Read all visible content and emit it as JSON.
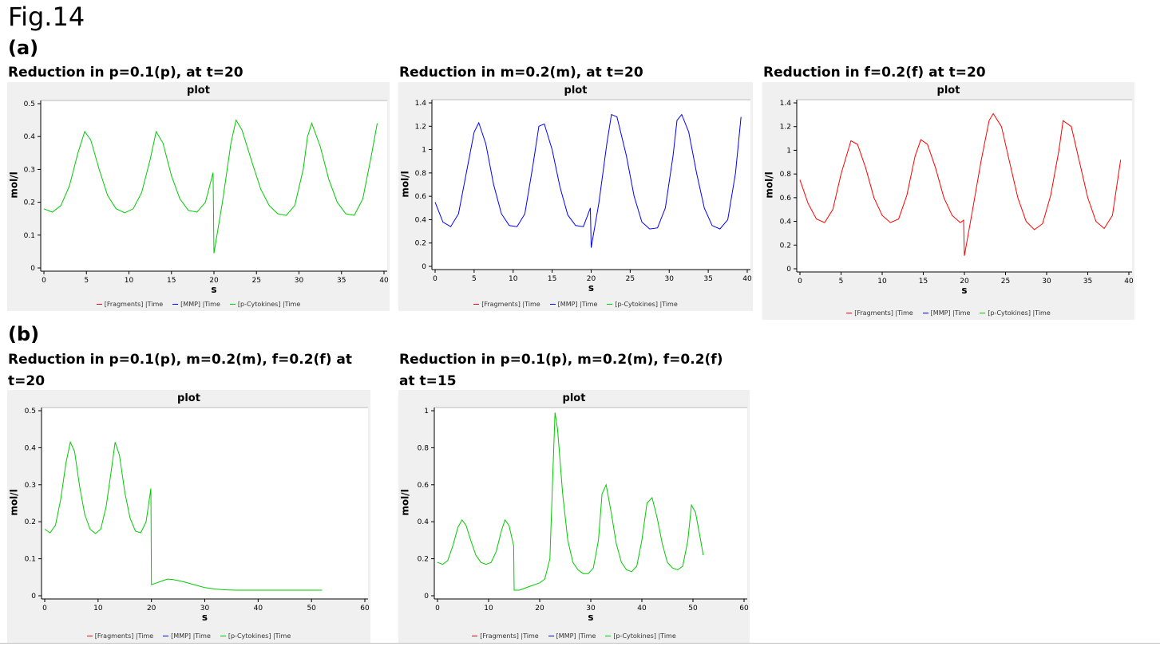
{
  "figure": {
    "title": "Fig.14",
    "panel_a": "(a)",
    "panel_b": "(b)",
    "captions": [
      "Reduction in p=0.1(p), at t=20",
      "Reduction in m=0.2(m), at t=20",
      "Reduction in f=0.2(f) at t=20",
      "Reduction in p=0.1(p), m=0.2(m), f=0.2(f) at t=20",
      "Reduction in p=0.1(p), m=0.2(m), f=0.2(f) at t=15"
    ]
  },
  "legend": [
    {
      "label": "[Fragments] |Time",
      "color": "#ff0000"
    },
    {
      "label": "[MMP] |Time",
      "color": "#0000ff"
    },
    {
      "label": "[p-Cytokines] |Time",
      "color": "#00cc00"
    }
  ],
  "chart_data": [
    {
      "type": "line",
      "title": "plot",
      "xlabel": "s",
      "ylabel": "mol/l",
      "xlim": [
        0,
        40
      ],
      "ylim": [
        0,
        0.5
      ],
      "xticks": [
        "0",
        "5",
        "10",
        "15",
        "20",
        "25",
        "30",
        "35",
        "40"
      ],
      "yticks": [
        "0",
        "0.1",
        "0.2",
        "0.3",
        "0.4",
        "0.5"
      ],
      "series": [
        {
          "name": "[p-Cytokines] |Time",
          "color": "#00cc00",
          "x": [
            0,
            1,
            2,
            3,
            4,
            4.8,
            5.5,
            6.5,
            7.5,
            8.5,
            9.5,
            10.5,
            11.5,
            12.5,
            13.2,
            14,
            15,
            16,
            17,
            18,
            19,
            19.9,
            20,
            21,
            22,
            22.6,
            23.3,
            24.5,
            25.5,
            26.5,
            27.5,
            28.5,
            29.5,
            30.5,
            31,
            31.5,
            32.5,
            33.5,
            34.5,
            35.5,
            36.5,
            37.5,
            38.5,
            39.2
          ],
          "y": [
            0.18,
            0.17,
            0.19,
            0.25,
            0.35,
            0.415,
            0.39,
            0.3,
            0.22,
            0.18,
            0.168,
            0.18,
            0.23,
            0.33,
            0.415,
            0.38,
            0.28,
            0.21,
            0.175,
            0.17,
            0.2,
            0.29,
            0.045,
            0.2,
            0.38,
            0.45,
            0.42,
            0.32,
            0.24,
            0.19,
            0.165,
            0.16,
            0.19,
            0.3,
            0.4,
            0.44,
            0.37,
            0.27,
            0.2,
            0.165,
            0.16,
            0.21,
            0.34,
            0.44
          ]
        }
      ]
    },
    {
      "type": "line",
      "title": "plot",
      "xlabel": "s",
      "ylabel": "mol/l",
      "xlim": [
        0,
        40
      ],
      "ylim": [
        0,
        1.4
      ],
      "xticks": [
        "0",
        "5",
        "10",
        "15",
        "20",
        "25",
        "30",
        "35",
        "40"
      ],
      "yticks": [
        "0",
        "0.2",
        "0.4",
        "0.6",
        "0.8",
        "1",
        "1.2",
        "1.4"
      ],
      "series": [
        {
          "name": "[MMP] |Time",
          "color": "#0000ff",
          "x": [
            0,
            1,
            2,
            3,
            4,
            5,
            5.6,
            6.5,
            7.5,
            8.5,
            9.5,
            10.5,
            11.5,
            12.5,
            13.3,
            14,
            15,
            16,
            17,
            18,
            19,
            19.9,
            20,
            21,
            22,
            22.6,
            23.3,
            24.5,
            25.5,
            26.5,
            27.5,
            28.5,
            29.5,
            30.5,
            31,
            31.6,
            32.5,
            33.5,
            34.5,
            35.5,
            36.5,
            37.5,
            38.5,
            39.2
          ],
          "y": [
            0.55,
            0.38,
            0.34,
            0.45,
            0.8,
            1.15,
            1.23,
            1.05,
            0.7,
            0.45,
            0.35,
            0.34,
            0.45,
            0.85,
            1.2,
            1.22,
            1.0,
            0.68,
            0.44,
            0.35,
            0.34,
            0.5,
            0.16,
            0.55,
            1.05,
            1.3,
            1.28,
            0.95,
            0.6,
            0.38,
            0.32,
            0.33,
            0.5,
            0.95,
            1.25,
            1.3,
            1.15,
            0.8,
            0.5,
            0.35,
            0.32,
            0.4,
            0.8,
            1.28
          ]
        }
      ]
    },
    {
      "type": "line",
      "title": "plot",
      "xlabel": "s",
      "ylabel": "mol/l",
      "xlim": [
        0,
        40
      ],
      "ylim": [
        0,
        1.4
      ],
      "xticks": [
        "0",
        "5",
        "10",
        "15",
        "20",
        "25",
        "30",
        "35",
        "40"
      ],
      "yticks": [
        "0",
        "0.2",
        "0.4",
        "0.6",
        "0.8",
        "1",
        "1.2",
        "1.4"
      ],
      "series": [
        {
          "name": "[Fragments] |Time",
          "color": "#ff0000",
          "x": [
            0,
            1,
            2,
            3,
            4,
            5,
            6.2,
            7,
            8,
            9,
            10,
            11,
            12,
            13,
            14,
            14.7,
            15.5,
            16.5,
            17.5,
            18.5,
            19.5,
            19.9,
            20,
            21,
            22,
            23,
            23.5,
            24.5,
            25.5,
            26.5,
            27.5,
            28.5,
            29.5,
            30.5,
            31.5,
            32,
            33,
            34,
            35,
            36,
            37,
            38,
            39
          ],
          "y": [
            0.75,
            0.55,
            0.42,
            0.39,
            0.5,
            0.8,
            1.08,
            1.05,
            0.85,
            0.6,
            0.45,
            0.39,
            0.42,
            0.62,
            0.95,
            1.09,
            1.05,
            0.85,
            0.6,
            0.45,
            0.39,
            0.41,
            0.11,
            0.5,
            0.9,
            1.25,
            1.31,
            1.2,
            0.9,
            0.6,
            0.4,
            0.33,
            0.38,
            0.62,
            1.0,
            1.25,
            1.2,
            0.9,
            0.6,
            0.4,
            0.34,
            0.45,
            0.92
          ]
        }
      ]
    },
    {
      "type": "line",
      "title": "plot",
      "xlabel": "s",
      "ylabel": "mol/l",
      "xlim": [
        0,
        60
      ],
      "ylim": [
        0,
        0.5
      ],
      "xticks": [
        "0",
        "10",
        "20",
        "30",
        "40",
        "50",
        "60"
      ],
      "yticks": [
        "0",
        "0.1",
        "0.2",
        "0.3",
        "0.4",
        "0.5"
      ],
      "series": [
        {
          "name": "[p-Cytokines] |Time",
          "color": "#00cc00",
          "x": [
            0,
            1,
            2,
            3,
            4,
            4.8,
            5.6,
            6.5,
            7.5,
            8.5,
            9.5,
            10.5,
            11.5,
            12.5,
            13.2,
            14,
            15,
            16,
            17,
            18,
            19,
            19.9,
            20,
            21,
            22,
            23,
            24,
            26,
            28,
            30,
            32,
            34,
            36,
            40,
            45,
            52
          ],
          "y": [
            0.18,
            0.17,
            0.19,
            0.26,
            0.36,
            0.415,
            0.39,
            0.3,
            0.22,
            0.18,
            0.168,
            0.18,
            0.24,
            0.34,
            0.415,
            0.38,
            0.28,
            0.21,
            0.175,
            0.17,
            0.2,
            0.29,
            0.03,
            0.035,
            0.04,
            0.045,
            0.044,
            0.038,
            0.03,
            0.022,
            0.018,
            0.016,
            0.015,
            0.015,
            0.015,
            0.015
          ]
        }
      ]
    },
    {
      "type": "line",
      "title": "plot",
      "xlabel": "s",
      "ylabel": "mol/l",
      "xlim": [
        0,
        60
      ],
      "ylim": [
        0,
        1
      ],
      "xticks": [
        "0",
        "10",
        "20",
        "30",
        "40",
        "50",
        "60"
      ],
      "yticks": [
        "0",
        "0.2",
        "0.4",
        "0.6",
        "0.8",
        "1"
      ],
      "series": [
        {
          "name": "[p-Cytokines] |Time",
          "color": "#00cc00",
          "x": [
            0,
            1,
            2,
            3,
            4,
            4.8,
            5.6,
            6.5,
            7.5,
            8.5,
            9.5,
            10.5,
            11.5,
            12.5,
            13.2,
            14,
            14.9,
            15,
            16,
            18,
            20,
            21,
            22,
            22.5,
            23,
            23.5,
            24.5,
            25.5,
            26.5,
            27.5,
            28.5,
            29.5,
            30.5,
            31.5,
            32.2,
            33,
            34,
            35,
            36,
            37,
            38,
            39,
            40,
            41,
            42,
            43,
            44,
            45,
            46,
            47,
            48,
            49,
            49.7,
            50.5,
            51.5,
            52
          ],
          "y": [
            0.18,
            0.17,
            0.19,
            0.27,
            0.37,
            0.41,
            0.38,
            0.3,
            0.22,
            0.18,
            0.17,
            0.18,
            0.24,
            0.35,
            0.41,
            0.38,
            0.27,
            0.03,
            0.03,
            0.05,
            0.07,
            0.09,
            0.2,
            0.6,
            0.99,
            0.9,
            0.55,
            0.3,
            0.18,
            0.14,
            0.12,
            0.12,
            0.15,
            0.3,
            0.55,
            0.6,
            0.45,
            0.28,
            0.18,
            0.14,
            0.13,
            0.16,
            0.3,
            0.5,
            0.53,
            0.42,
            0.28,
            0.18,
            0.15,
            0.14,
            0.16,
            0.3,
            0.49,
            0.45,
            0.3,
            0.22
          ]
        }
      ]
    }
  ]
}
